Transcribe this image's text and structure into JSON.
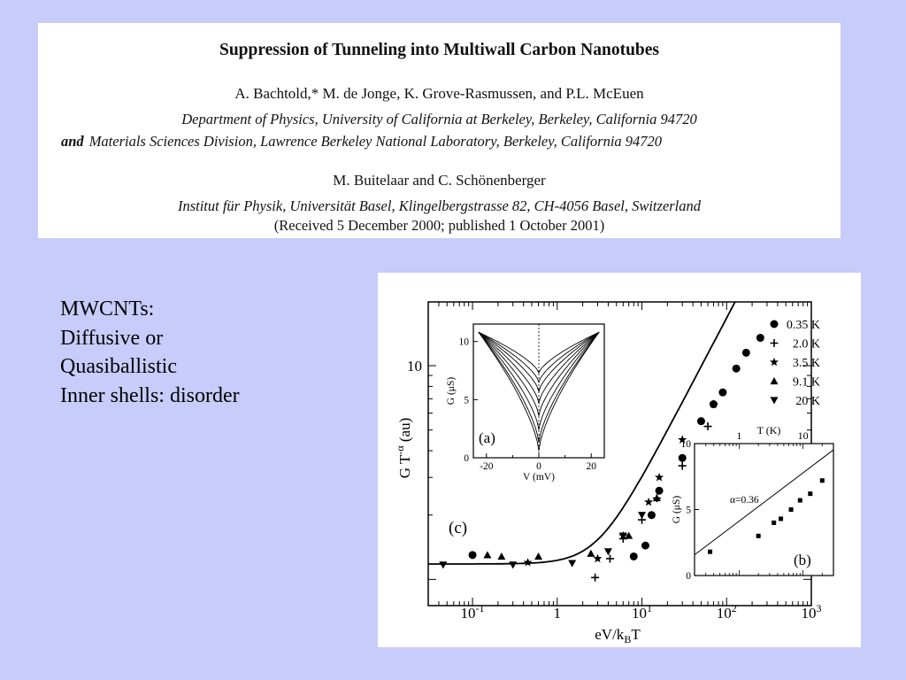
{
  "header": {
    "title": "Suppression of Tunneling into Multiwall Carbon Nanotubes",
    "authors_line1": "A. Bachtold,*  M. de Jonge, K. Grove-Rasmussen, and P.L. McEuen",
    "affiliation1": "Department of Physics, University of California at Berkeley, Berkeley, California 94720",
    "affiliation2_and": "and",
    "affiliation2": "Materials Sciences Division, Lawrence Berkeley National Laboratory, Berkeley, California 94720",
    "authors_line2": "M. Buitelaar and C. Schönenberger",
    "affiliation3": "Institut für Physik, Universität Basel, Klingelbergstrasse 82, CH-4056 Basel, Switzerland",
    "received": "(Received 5 December 2000; published 1 October 2001)"
  },
  "bullets": [
    "MWCNTs:",
    "Diffusive or",
    "Quasiballistic",
    "Inner shells: disorder"
  ],
  "chart_data": [
    {
      "panel": "(c)",
      "type": "scatter",
      "xscale": "log",
      "yscale": "log",
      "xlim": [
        0.03,
        1000
      ],
      "xlabel": "eV/k",
      "xlabel_sub": "B",
      "xlabel_tail": "T",
      "ylabel": "G T",
      "ylabel_sup": "-α",
      "ylabel_unit": "(au)",
      "xticks": [
        {
          "value": 0.1,
          "base": "10",
          "exp": "-1"
        },
        {
          "value": 1,
          "base": "1",
          "exp": ""
        },
        {
          "value": 10,
          "base": "10",
          "exp": "1"
        },
        {
          "value": 100,
          "base": "10",
          "exp": "2"
        },
        {
          "value": 1000,
          "base": "10",
          "exp": "3"
        }
      ],
      "yticks": [
        {
          "value": 10,
          "label": "10"
        }
      ],
      "legend": [
        {
          "label": "0.35 K",
          "marker": "circle"
        },
        {
          "label": "2.0 K",
          "marker": "plus"
        },
        {
          "label": "3.5 K",
          "marker": "star"
        },
        {
          "label": "9.1 K",
          "marker": "triangle-up"
        },
        {
          "label": "20 K",
          "marker": "triangle-down"
        }
      ],
      "series": [
        {
          "name": "0.35 K",
          "marker": "circle",
          "points": [
            [
              0.1,
              1.3
            ],
            [
              8,
              1.28
            ],
            [
              11,
              1.44
            ],
            [
              13,
              2.0
            ],
            [
              16,
              2.6
            ],
            [
              30,
              3.7
            ],
            [
              50,
              5.5
            ],
            [
              70,
              6.6
            ],
            [
              90,
              7.5
            ],
            [
              130,
              9.7
            ],
            [
              170,
              11.5
            ],
            [
              250,
              13.5
            ]
          ]
        },
        {
          "name": "2.0 K",
          "marker": "plus",
          "points": [
            [
              2.8,
              1.02
            ],
            [
              4.2,
              1.25
            ],
            [
              6,
              1.55
            ],
            [
              10,
              1.9
            ],
            [
              15,
              2.4
            ],
            [
              30,
              3.4
            ],
            [
              60,
              5.2
            ]
          ]
        },
        {
          "name": "3.5 K",
          "marker": "star",
          "points": [
            [
              0.45,
              1.2
            ],
            [
              3,
              1.25
            ],
            [
              6,
              1.6
            ],
            [
              12,
              2.3
            ],
            [
              16,
              3.0
            ],
            [
              30,
              4.5
            ],
            [
              70,
              6.6
            ]
          ]
        },
        {
          "name": "9.1 K",
          "marker": "triangle-up",
          "points": [
            [
              0.15,
              1.3
            ],
            [
              0.22,
              1.28
            ],
            [
              0.6,
              1.28
            ],
            [
              2.5,
              1.32
            ],
            [
              7,
              1.6
            ],
            [
              15,
              2.4
            ]
          ]
        },
        {
          "name": "20 K",
          "marker": "triangle-down",
          "points": [
            [
              0.045,
              1.17
            ],
            [
              0.3,
              1.17
            ],
            [
              1.5,
              1.19
            ],
            [
              4,
              1.35
            ],
            [
              6,
              1.6
            ],
            [
              10,
              2.0
            ]
          ]
        }
      ],
      "fit_curve": {
        "plateau": 1.18,
        "knee": 3.0,
        "slope": 0.36
      }
    },
    {
      "panel": "(a)",
      "type": "line",
      "xlabel": "V (mV)",
      "ylabel": "G (μS)",
      "xlim": [
        -25,
        25
      ],
      "ylim": [
        0,
        11.5
      ],
      "xticks": [
        -20,
        0,
        20
      ],
      "yticks": [
        0,
        5,
        10
      ],
      "curves_min_G": [
        7.3,
        6.5,
        5.7,
        4.7,
        3.6,
        2.4,
        1.3,
        0.6
      ]
    },
    {
      "panel": "(b)",
      "type": "scatter",
      "xscale": "log",
      "xlabel_top": "T (K)",
      "ylabel": "G (μS)",
      "xlim": [
        0.2,
        30
      ],
      "ylim": [
        0,
        10
      ],
      "xticks": [
        {
          "value": 1,
          "label": "1"
        },
        {
          "value": 10,
          "label": "10"
        }
      ],
      "yticks": [
        0,
        5,
        10
      ],
      "annotation": "α=0.36",
      "points": [
        [
          0.35,
          1.8
        ],
        [
          2,
          3.0
        ],
        [
          3.5,
          4.0
        ],
        [
          4.5,
          4.3
        ],
        [
          6.5,
          5.0
        ],
        [
          9,
          5.7
        ],
        [
          13,
          6.2
        ],
        [
          20,
          7.2
        ]
      ],
      "fit": {
        "alpha": 0.36,
        "G_at_1K": 2.8
      }
    }
  ]
}
